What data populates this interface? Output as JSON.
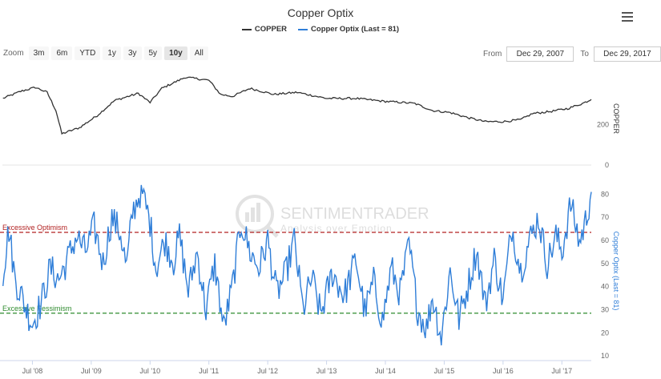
{
  "title": "Copper Optix",
  "legend": {
    "copper": "COPPER",
    "optix": "Copper Optix (Last = 81)"
  },
  "colors": {
    "copper": "#333333",
    "optix": "#2f7ed8",
    "optimism": "#b22222",
    "pessimism": "#2e8b2e"
  },
  "zoom": {
    "label": "Zoom",
    "buttons": [
      "3m",
      "6m",
      "YTD",
      "1y",
      "3y",
      "5y",
      "10y",
      "All"
    ],
    "active": "10y"
  },
  "range": {
    "from_label": "From",
    "from_value": "Dec 29, 2007",
    "to_label": "To",
    "to_value": "Dec 29, 2017"
  },
  "watermark": {
    "name": "SENTIMENTRADER",
    "tagline": "Analysis over Emotion"
  },
  "menu_icon": "hamburger-icon",
  "chart_data": [
    {
      "type": "line",
      "name": "COPPER",
      "axis_title": "COPPER",
      "yticks": [
        0,
        200
      ],
      "ylim": [
        0,
        500
      ],
      "x_years": [
        2008.0,
        2008.3,
        2008.55,
        2008.75,
        2008.9,
        2009.0,
        2009.3,
        2009.6,
        2009.9,
        2010.3,
        2010.5,
        2010.7,
        2011.1,
        2011.5,
        2011.7,
        2011.9,
        2012.2,
        2012.6,
        2013.0,
        2013.5,
        2014.0,
        2014.5,
        2014.8,
        2015.0,
        2015.3,
        2015.6,
        2015.9,
        2016.2,
        2016.5,
        2016.8,
        2017.0,
        2017.3,
        2017.6,
        2017.85,
        2018.0
      ],
      "values": [
        330,
        365,
        385,
        360,
        270,
        155,
        185,
        245,
        320,
        355,
        310,
        380,
        435,
        420,
        350,
        340,
        380,
        350,
        360,
        330,
        330,
        315,
        310,
        305,
        270,
        260,
        235,
        215,
        215,
        225,
        255,
        265,
        280,
        305,
        325
      ]
    },
    {
      "type": "line",
      "name": "Copper Optix (Last = 81)",
      "axis_title": "Copper Optix (Last = 81)",
      "yticks": [
        10,
        20,
        30,
        40,
        50,
        60,
        70,
        80
      ],
      "ylim": [
        8,
        85
      ],
      "x_years": [
        2008.0,
        2008.1,
        2008.2,
        2008.4,
        2008.5,
        2008.65,
        2008.8,
        2008.95,
        2009.1,
        2009.25,
        2009.4,
        2009.55,
        2009.7,
        2009.85,
        2010.0,
        2010.1,
        2010.2,
        2010.35,
        2010.5,
        2010.6,
        2010.75,
        2010.9,
        2011.0,
        2011.15,
        2011.3,
        2011.45,
        2011.6,
        2011.75,
        2011.9,
        2012.05,
        2012.2,
        2012.35,
        2012.5,
        2012.65,
        2012.8,
        2012.95,
        2013.1,
        2013.25,
        2013.4,
        2013.6,
        2013.8,
        2014.0,
        2014.15,
        2014.3,
        2014.45,
        2014.6,
        2014.75,
        2014.9,
        2015.05,
        2015.2,
        2015.3,
        2015.45,
        2015.6,
        2015.75,
        2015.9,
        2016.05,
        2016.2,
        2016.35,
        2016.5,
        2016.65,
        2016.8,
        2016.95,
        2017.1,
        2017.25,
        2017.4,
        2017.5,
        2017.65,
        2017.8,
        2017.9,
        2018.0
      ],
      "values": [
        46,
        65,
        44,
        30,
        24,
        33,
        48,
        43,
        52,
        62,
        55,
        66,
        50,
        70,
        63,
        48,
        72,
        82,
        68,
        48,
        60,
        51,
        62,
        38,
        55,
        30,
        50,
        22,
        40,
        68,
        55,
        48,
        60,
        37,
        45,
        60,
        30,
        44,
        28,
        46,
        36,
        52,
        29,
        42,
        25,
        48,
        37,
        58,
        30,
        22,
        36,
        18,
        47,
        26,
        40,
        56,
        32,
        52,
        34,
        66,
        47,
        60,
        70,
        50,
        62,
        55,
        76,
        59,
        68,
        81
      ]
    }
  ],
  "reference_lines": {
    "optimism": {
      "label": "Excessive Optimism",
      "value": 63.5
    },
    "pessimism": {
      "label": "Excessive Pessimism",
      "value": 28.5
    }
  },
  "x_axis": {
    "ticks": [
      "Jul '08",
      "Jul '09",
      "Jul '10",
      "Jul '11",
      "Jul '12",
      "Jul '13",
      "Jul '14",
      "Jul '15",
      "Jul '16",
      "Jul '17"
    ],
    "tick_years": [
      2008.5,
      2009.5,
      2010.5,
      2011.5,
      2012.5,
      2013.5,
      2014.5,
      2015.5,
      2016.5,
      2017.5
    ],
    "range": [
      2007.99,
      2018.0
    ]
  }
}
